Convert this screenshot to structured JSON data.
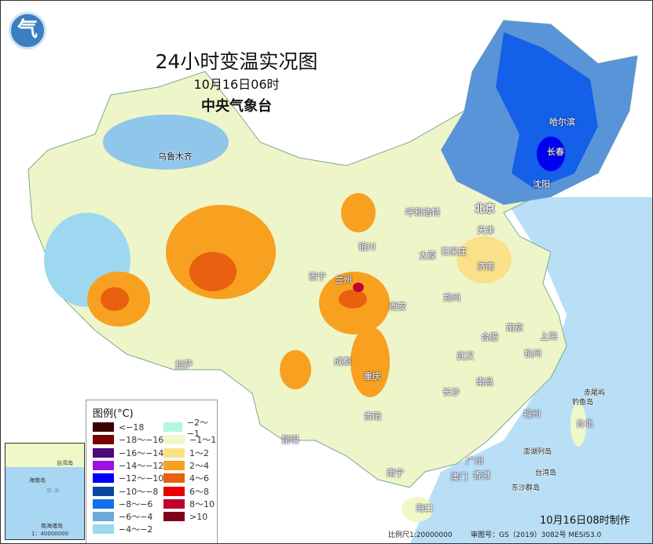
{
  "header": {
    "title": "24小时变温实况图",
    "date": "10月16日06时",
    "agency": "中央气象台",
    "logo_text": "气"
  },
  "legend": {
    "title": "图例(°C)",
    "items": [
      {
        "label": "<−18",
        "color": "#3b0000"
      },
      {
        "label": "−18～−16",
        "color": "#7a0000"
      },
      {
        "label": "−16～−14",
        "color": "#4a0a78"
      },
      {
        "label": "−14～−12",
        "color": "#a010e0"
      },
      {
        "label": "−12～−10",
        "color": "#0000f5"
      },
      {
        "label": "−10～−8",
        "color": "#0a46a0"
      },
      {
        "label": "−8～−6",
        "color": "#1070f0"
      },
      {
        "label": "−6～−4",
        "color": "#6aaad8"
      },
      {
        "label": "−4～−2",
        "color": "#9dd8f0"
      },
      {
        "label": "−2～−1",
        "color": "#b4f5e4"
      },
      {
        "label": "−1～1",
        "color": "#f0f8c8"
      },
      {
        "label": "1～2",
        "color": "#fbe08a"
      },
      {
        "label": "2～4",
        "color": "#f8a020"
      },
      {
        "label": "4～6",
        "color": "#e86010"
      },
      {
        "label": "6～8",
        "color": "#e80000"
      },
      {
        "label": "8～10",
        "color": "#c00030"
      },
      {
        "label": ">10",
        "color": "#80001c"
      }
    ]
  },
  "cities": [
    {
      "name": "乌鲁木齐"
    },
    {
      "name": "哈尔滨"
    },
    {
      "name": "长春"
    },
    {
      "name": "沈阳"
    },
    {
      "name": "北京"
    },
    {
      "name": "天津"
    },
    {
      "name": "呼和浩特"
    },
    {
      "name": "石家庄"
    },
    {
      "name": "太原"
    },
    {
      "name": "济南"
    },
    {
      "name": "银川"
    },
    {
      "name": "西宁"
    },
    {
      "name": "兰州"
    },
    {
      "name": "郑州"
    },
    {
      "name": "西安"
    },
    {
      "name": "合肥"
    },
    {
      "name": "南京"
    },
    {
      "name": "上海"
    },
    {
      "name": "杭州"
    },
    {
      "name": "武汉"
    },
    {
      "name": "成都"
    },
    {
      "name": "重庆"
    },
    {
      "name": "拉萨"
    },
    {
      "name": "长沙"
    },
    {
      "name": "南昌"
    },
    {
      "name": "福州"
    },
    {
      "name": "台北"
    },
    {
      "name": "贵阳"
    },
    {
      "name": "昆明"
    },
    {
      "name": "南宁"
    },
    {
      "name": "广州"
    },
    {
      "name": "澳门"
    },
    {
      "name": "香港"
    },
    {
      "name": "海口"
    },
    {
      "name": "赤尾屿"
    },
    {
      "name": "钓鱼岛"
    },
    {
      "name": "澎湖列岛"
    },
    {
      "name": "台湾岛"
    },
    {
      "name": "东沙群岛"
    }
  ],
  "inset": {
    "taiwan": "台湾岛",
    "hainan": "海南岛",
    "sea": "南 海",
    "scale_title": "南海诸岛",
    "scale": "1：40000000"
  },
  "footer": {
    "made": "10月16日08时制作",
    "scale": "比例尺1:20000000",
    "approval": "审图号：GS（2019）3082号 MESIS3.0"
  }
}
